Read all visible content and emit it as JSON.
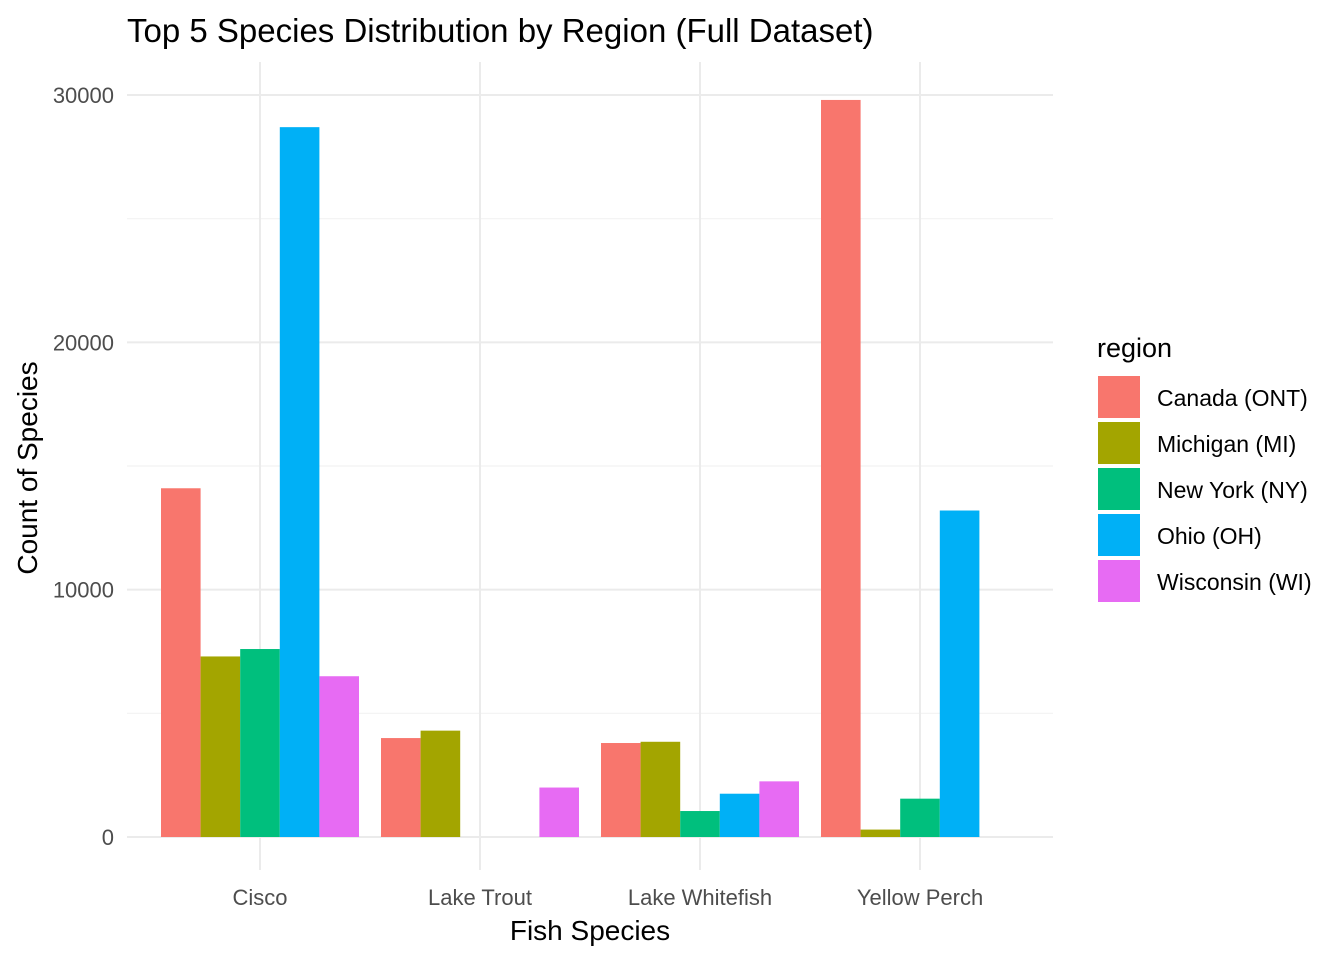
{
  "chart_data": {
    "type": "bar",
    "title": "Top 5 Species Distribution by Region (Full Dataset)",
    "xlabel": "Fish Species",
    "ylabel": "Count of Species",
    "categories": [
      "Cisco",
      "Lake Trout",
      "Lake Whitefish",
      "Yellow Perch"
    ],
    "series": [
      {
        "name": "Canada (ONT)",
        "color": "#F8766D",
        "values": [
          14100,
          4000,
          3800,
          29800
        ]
      },
      {
        "name": "Michigan (MI)",
        "color": "#A3A500",
        "values": [
          7300,
          4300,
          3850,
          300
        ]
      },
      {
        "name": "New York (NY)",
        "color": "#00BF7D",
        "values": [
          7600,
          0,
          1050,
          1550
        ]
      },
      {
        "name": "Ohio (OH)",
        "color": "#00B0F6",
        "values": [
          28700,
          0,
          1750,
          13200
        ]
      },
      {
        "name": "Wisconsin (WI)",
        "color": "#E76BF3",
        "values": [
          6500,
          2000,
          2250,
          0
        ]
      }
    ],
    "yticks": [
      "0",
      "10000",
      "20000",
      "30000"
    ],
    "ylim": [
      0,
      30000
    ],
    "legend": {
      "title": "region",
      "position": "right"
    },
    "grid": true,
    "bar_layout": "dodge"
  }
}
